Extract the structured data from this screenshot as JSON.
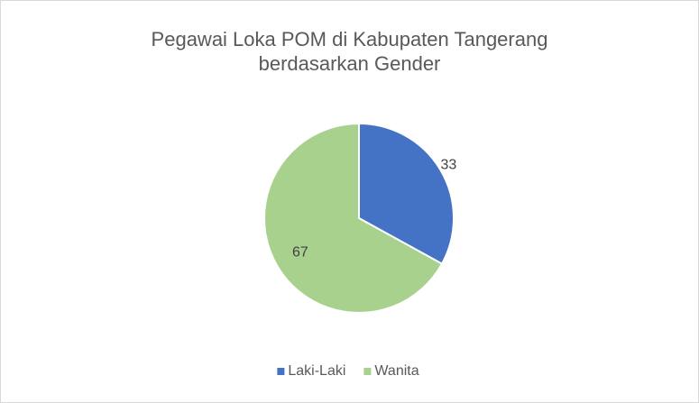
{
  "chart_data": {
    "type": "pie",
    "title": "Pegawai Loka POM di Kabupaten Tangerang berdasarkan Gender",
    "categories": [
      "Laki-Laki",
      "Wanita"
    ],
    "values": [
      33,
      67
    ],
    "colors": [
      "#4472c4",
      "#a9d18e"
    ],
    "legend": "bottom"
  }
}
